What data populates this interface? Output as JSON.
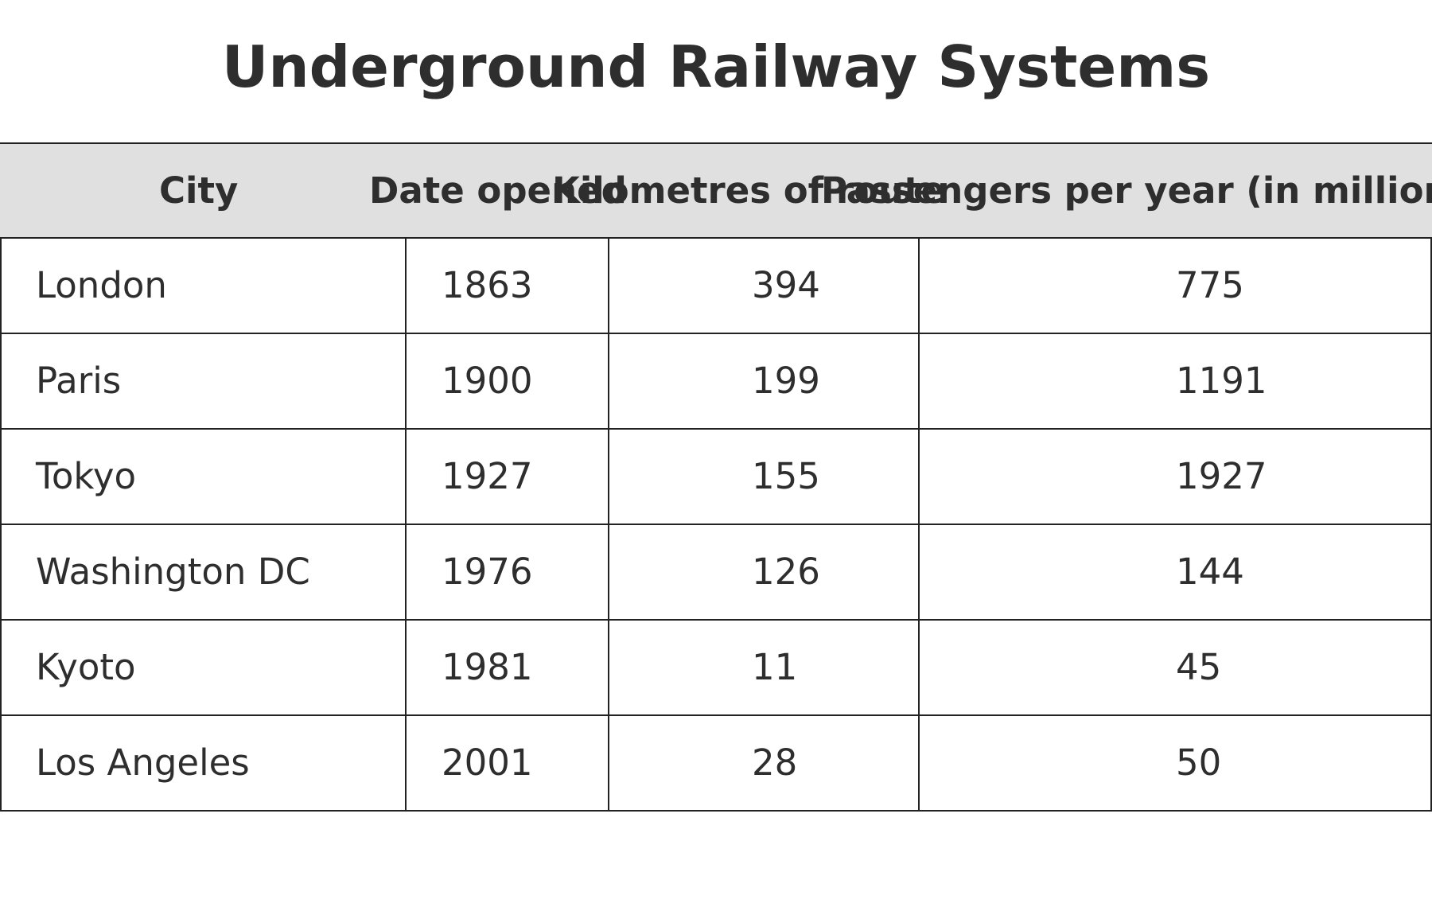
{
  "chart_data": {
    "type": "table",
    "title": "Underground Railway Systems",
    "columns": [
      "City",
      "Date opened",
      "Kilometres of route",
      "Passengers per year (in millions)"
    ],
    "rows": [
      [
        "London",
        "1863",
        "394",
        "775"
      ],
      [
        "Paris",
        "1900",
        "199",
        "1191"
      ],
      [
        "Tokyo",
        "1927",
        "155",
        "1927"
      ],
      [
        "Washington DC",
        "1976",
        "126",
        "144"
      ],
      [
        "Kyoto",
        "1981",
        "11",
        "45"
      ],
      [
        "Los Angeles",
        "2001",
        "28",
        "50"
      ]
    ]
  },
  "colors": {
    "header_bg": "#e0e0e0",
    "text": "#2e2e2e",
    "border": "#222222"
  }
}
